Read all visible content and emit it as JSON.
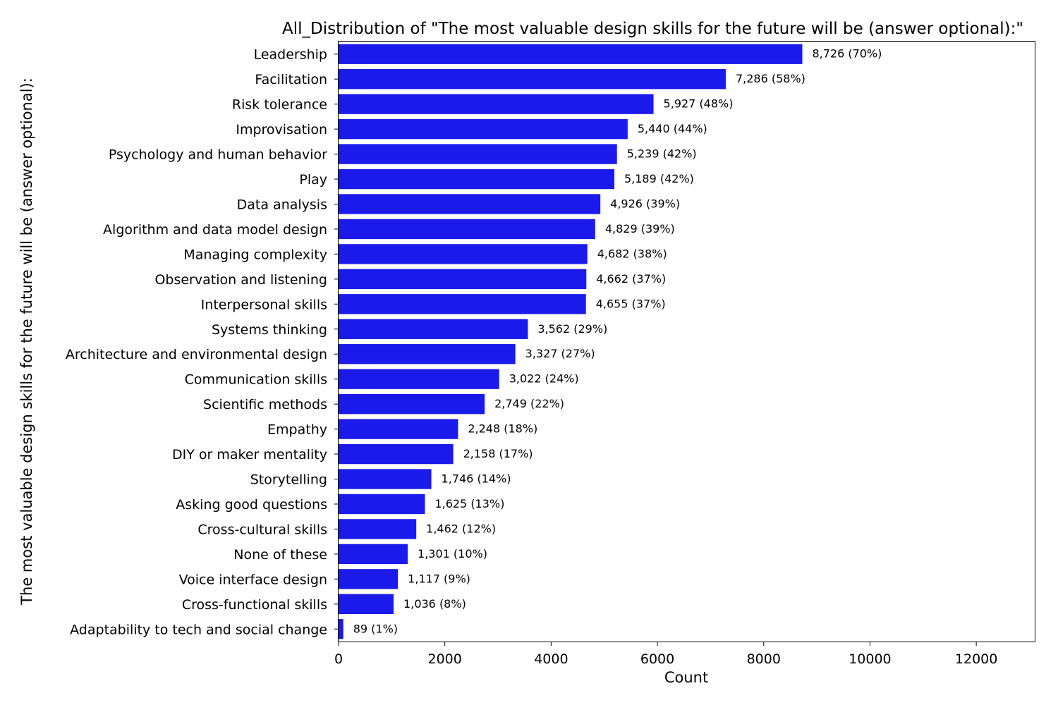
{
  "chart_data": {
    "type": "bar",
    "orientation": "horizontal",
    "title": "All_Distribution of \"The most valuable design skills for the future will be (answer optional):\"",
    "xlabel": "Count",
    "ylabel": "The most valuable design skills for the future will be (answer optional):",
    "xlim": [
      0,
      13100
    ],
    "xticks": [
      0,
      2000,
      4000,
      6000,
      8000,
      10000,
      12000
    ],
    "grid": false,
    "legend": "none",
    "bar_color": "#1a1aeb",
    "categories": [
      "Leadership",
      "Facilitation",
      "Risk tolerance",
      "Improvisation",
      "Psychology and human behavior",
      "Play",
      "Data analysis",
      "Algorithm and data model design",
      "Managing complexity",
      "Observation and listening",
      "Interpersonal skills",
      "Systems thinking",
      "Architecture and environmental design",
      "Communication skills",
      "Scientific methods",
      "Empathy",
      "DIY or maker mentality",
      "Storytelling",
      "Asking good questions",
      "Cross-cultural skills",
      "None of these",
      "Voice interface design",
      "Cross-functional skills",
      "Adaptability to tech and social change"
    ],
    "values": [
      8726,
      7286,
      5927,
      5440,
      5239,
      5189,
      4926,
      4829,
      4682,
      4662,
      4655,
      3562,
      3327,
      3022,
      2749,
      2248,
      2158,
      1746,
      1625,
      1462,
      1301,
      1117,
      1036,
      89
    ],
    "data_labels": [
      "8,726 (70%)",
      "7,286 (58%)",
      "5,927 (48%)",
      "5,440 (44%)",
      "5,239 (42%)",
      "5,189 (42%)",
      "4,926 (39%)",
      "4,829 (39%)",
      "4,682 (38%)",
      "4,662 (37%)",
      "4,655 (37%)",
      "3,562 (29%)",
      "3,327 (27%)",
      "3,022 (24%)",
      "2,749 (22%)",
      "2,248 (18%)",
      "2,158 (17%)",
      "1,746 (14%)",
      "1,625 (13%)",
      "1,462 (12%)",
      "1,301 (10%)",
      "1,117 (9%)",
      "1,036 (8%)",
      "89 (1%)"
    ]
  }
}
